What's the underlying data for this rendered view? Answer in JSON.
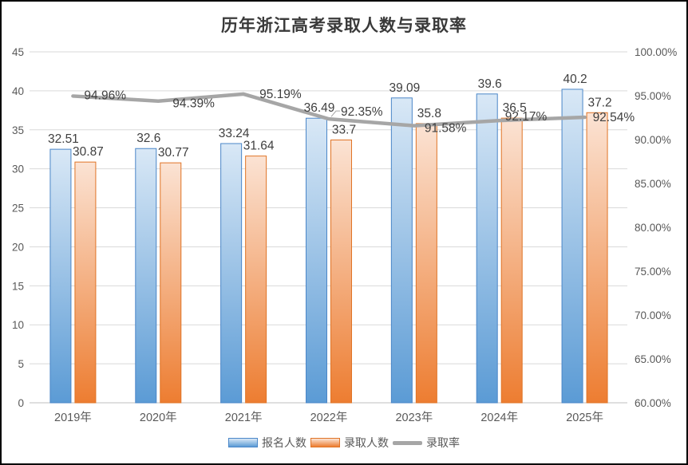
{
  "chart_data": {
    "type": "bar",
    "subtype": "combo-bar-line-dual-axis",
    "title": "历年浙江高考录取人数与录取率",
    "categories": [
      "2019年",
      "2020年",
      "2021年",
      "2022年",
      "2023年",
      "2024年",
      "2025年"
    ],
    "series": [
      {
        "name": "报名人数",
        "type": "bar",
        "axis": "left",
        "values": [
          32.51,
          32.6,
          33.24,
          36.49,
          39.09,
          39.6,
          40.2
        ],
        "labels": [
          "32.51",
          "32.6",
          "33.24",
          "36.49",
          "39.09",
          "39.6",
          "40.2"
        ]
      },
      {
        "name": "录取人数",
        "type": "bar",
        "axis": "left",
        "values": [
          30.87,
          30.77,
          31.64,
          33.7,
          35.8,
          36.5,
          37.2
        ],
        "labels": [
          "30.87",
          "30.77",
          "31.64",
          "33.7",
          "35.8",
          "36.5",
          "37.2"
        ]
      },
      {
        "name": "录取率",
        "type": "line",
        "axis": "right",
        "values": [
          94.96,
          94.39,
          95.19,
          92.35,
          91.58,
          92.17,
          92.54
        ],
        "labels": [
          "94.96%",
          "94.39%",
          "95.19%",
          "92.35%",
          "91.58%",
          "92.17%",
          "92.54%"
        ],
        "label_offsets": [
          [
            14,
            -1
          ],
          [
            18,
            3
          ],
          [
            20,
            0
          ],
          [
            15,
            -9
          ],
          [
            13,
            3
          ],
          [
            7,
            -5
          ],
          [
            10,
            0
          ]
        ],
        "leader_index": 3
      }
    ],
    "axes": {
      "left": {
        "min": 0,
        "max": 45,
        "step": 5,
        "ticks": [
          "0",
          "5",
          "10",
          "15",
          "20",
          "25",
          "30",
          "35",
          "40",
          "45"
        ]
      },
      "right": {
        "min": 60,
        "max": 100,
        "step": 5,
        "ticks": [
          "60.00%",
          "65.00%",
          "70.00%",
          "75.00%",
          "80.00%",
          "85.00%",
          "90.00%",
          "95.00%",
          "100.00%"
        ]
      }
    },
    "grid": true,
    "legend": {
      "position": "bottom",
      "entries": [
        "报名人数",
        "录取人数",
        "录取率"
      ]
    },
    "colors": {
      "bar1_top": "#D9E8F6",
      "bar1_bottom": "#5B9BD5",
      "bar1_border": "#4A86C8",
      "bar1_legend": "#5B9BD5",
      "bar2_top": "#FBE3D4",
      "bar2_bottom": "#ED7D31",
      "bar2_border": "#E07426",
      "bar2_legend": "#ED7D31",
      "line": "#A6A6A6",
      "grid": "#D9D9D9",
      "axis_line": "#BFBFBF",
      "tick_text": "#595959",
      "data_label_text": "#3F3F3F"
    }
  }
}
